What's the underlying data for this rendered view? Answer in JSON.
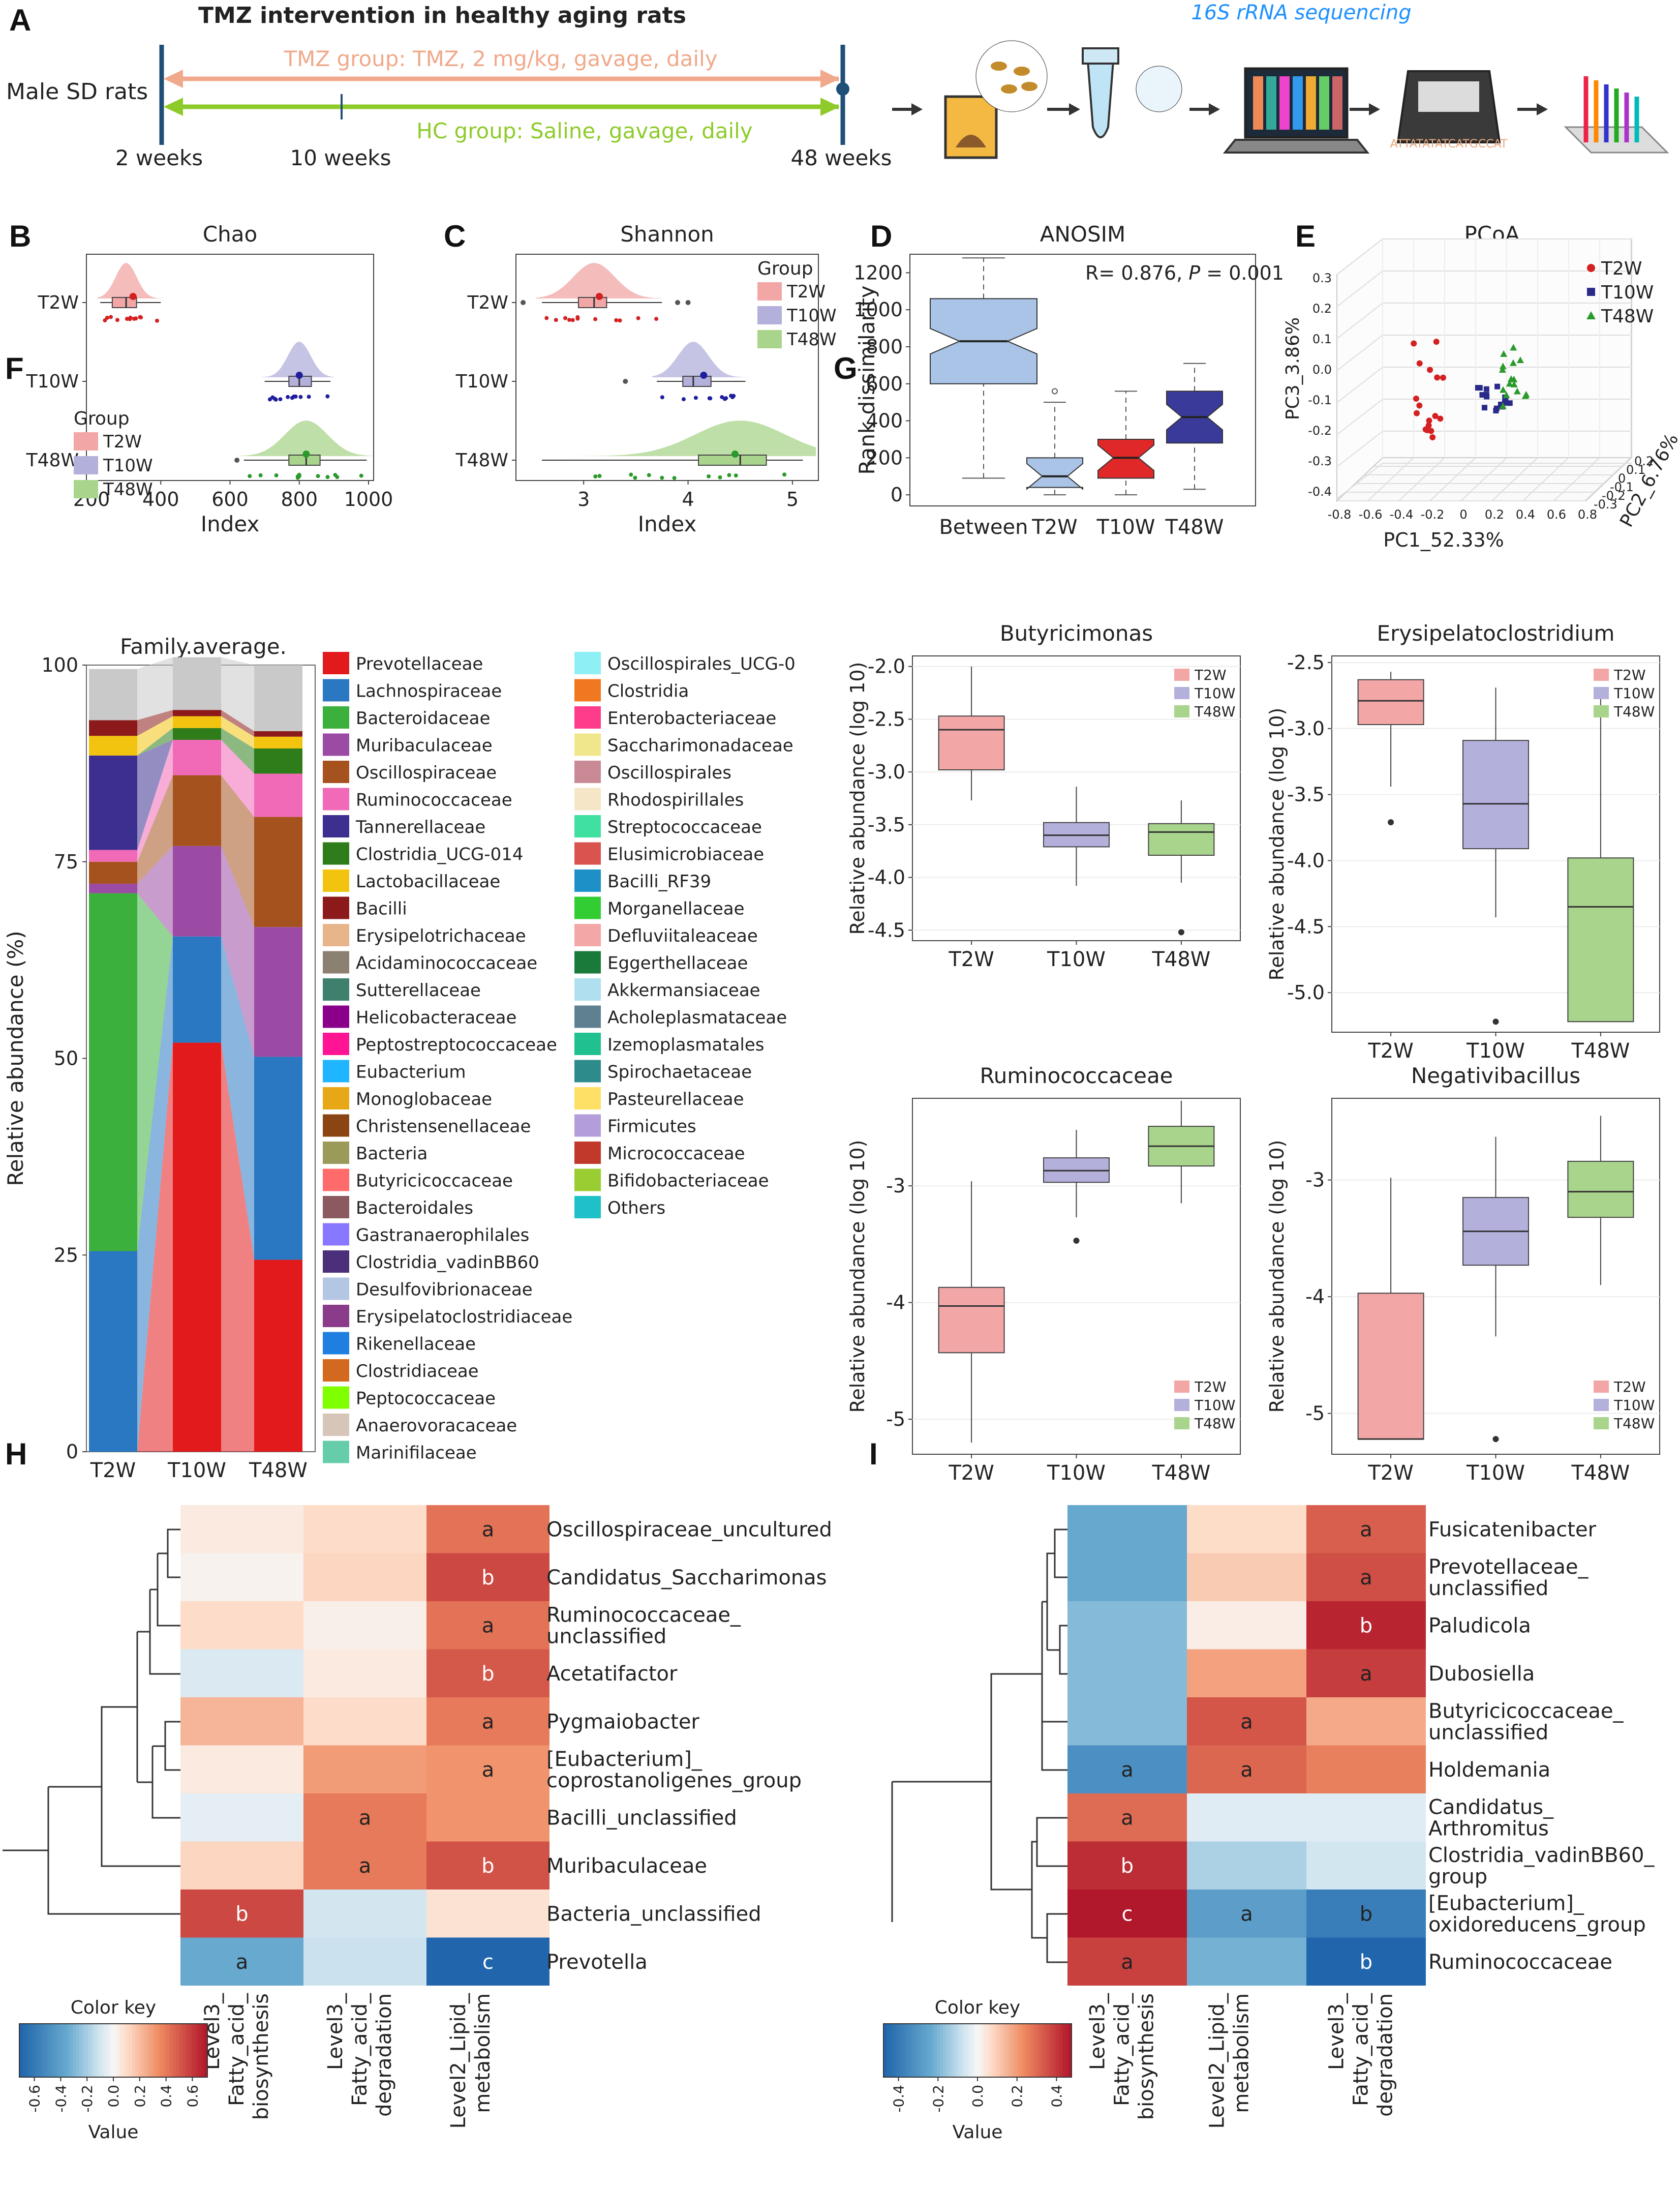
{
  "panel_letters": [
    "A",
    "B",
    "C",
    "D",
    "E",
    "F",
    "G",
    "H",
    "I"
  ],
  "panelA": {
    "title": "TMZ intervention in healthy aging rats",
    "subject": "Male SD rats",
    "tmz_label": "TMZ group: TMZ, 2 mg/kg, gavage, daily",
    "hc_label": "HC group: Saline, gavage, daily",
    "times": [
      "2 weeks",
      "10 weeks",
      "48 weeks"
    ],
    "seq_label": "16S rRNA sequencing",
    "seq_text": "ATTATATATCATGCCAT"
  },
  "colors": {
    "T2W": "#f2a6a6",
    "T10W": "#b3b0dc",
    "T48W": "#a9d48c",
    "T2W_dot": "#d42020",
    "T10W_dot": "#1f1f9e",
    "T48W_dot": "#2a9a2a",
    "pcoa_T2W": "#d42020",
    "pcoa_T10W": "#2a2a8a",
    "pcoa_T48W": "#2a9a2a",
    "tmz": "#f0a98a",
    "hc": "#8ecb2a",
    "timeline": "#1f4e79",
    "seq": "#1e90ff"
  },
  "group_labels": [
    "T2W",
    "T10W",
    "T48W"
  ],
  "legend_title": "Group",
  "chart_data": [
    {
      "panel": "B",
      "type": "raincloud",
      "title": "Chao",
      "xlabel": "Index",
      "xlim": [
        200,
        1000
      ],
      "xticks": [
        200,
        400,
        600,
        800,
        1000
      ],
      "categories": [
        "T2W",
        "T10W",
        "T48W"
      ],
      "box": [
        {
          "q1": 260,
          "median": 300,
          "q3": 330,
          "whislo": 225,
          "whishi": 400,
          "mean": 320,
          "outliers": []
        },
        {
          "q1": 770,
          "median": 800,
          "q3": 835,
          "whislo": 700,
          "whishi": 890,
          "mean": 800,
          "outliers": []
        },
        {
          "q1": 770,
          "median": 820,
          "q3": 860,
          "whislo": 640,
          "whishi": 995,
          "mean": 820,
          "outliers": [
            620
          ]
        }
      ]
    },
    {
      "panel": "C",
      "type": "raincloud",
      "title": "Shannon",
      "xlabel": "Index",
      "xlim": [
        2.4,
        5.2
      ],
      "xticks": [
        3,
        4,
        5
      ],
      "categories": [
        "T2W",
        "T10W",
        "T48W"
      ],
      "box": [
        {
          "q1": 2.95,
          "median": 3.1,
          "q3": 3.22,
          "whislo": 2.6,
          "whishi": 3.75,
          "mean": 3.15,
          "outliers": [
            2.42,
            3.9,
            4.0
          ]
        },
        {
          "q1": 3.95,
          "median": 4.05,
          "q3": 4.22,
          "whislo": 3.7,
          "whishi": 4.55,
          "mean": 4.15,
          "outliers": [
            3.4
          ]
        },
        {
          "q1": 4.1,
          "median": 4.5,
          "q3": 4.75,
          "whislo": 2.6,
          "whishi": 5.1,
          "mean": 4.45,
          "outliers": []
        }
      ]
    },
    {
      "panel": "D",
      "type": "boxplot",
      "title": "ANOSIM",
      "ylabel": "Rank dissimilarity",
      "ylim": [
        -60,
        1300
      ],
      "yticks": [
        0,
        200,
        400,
        600,
        800,
        1000,
        1200
      ],
      "annotation_r": "R= 0.876,",
      "annotation_p": "P",
      "annotation_pval": " = 0.001",
      "categories": [
        "Between",
        "T2W",
        "T10W",
        "T48W"
      ],
      "box_colors": [
        "#a9c4e6",
        "#a9c4e6",
        "#e02828",
        "#3a3a9a"
      ],
      "box": [
        {
          "q1": 600,
          "median": 830,
          "q3": 1060,
          "whislo": 90,
          "whishi": 1280,
          "outliers": []
        },
        {
          "q1": 40,
          "median": 100,
          "q3": 200,
          "whislo": 0,
          "whishi": 500,
          "outliers": [
            560
          ]
        },
        {
          "q1": 90,
          "median": 200,
          "q3": 300,
          "whislo": 0,
          "whishi": 560,
          "outliers": []
        },
        {
          "q1": 280,
          "median": 420,
          "q3": 560,
          "whislo": 30,
          "whishi": 710,
          "outliers": []
        }
      ]
    },
    {
      "panel": "E",
      "type": "scatter3d",
      "title": "PCoA",
      "xlabel": "PC1_52.33%",
      "ylabel": "PC2_6.76%",
      "zlabel": "PC3_3.86%",
      "zticks": [
        "-0.4",
        "-0.3",
        "-0.2",
        "-0.1",
        "0.0",
        "0.1",
        "0.2",
        "0.3"
      ],
      "xticks": [
        "-0.8",
        "-0.6",
        "-0.4",
        "-0.2",
        "0",
        "0.2",
        "0.4",
        "0.6",
        "0.8"
      ],
      "yticks": [
        "-0.3",
        "-0.2",
        "-0.1",
        "0",
        "0.1",
        "0.2"
      ],
      "legend": [
        "T2W",
        "T10W",
        "T48W"
      ]
    },
    {
      "panel": "F",
      "type": "stacked_bar",
      "title": "Family.average.",
      "ylabel": "Relative abundance (%)",
      "ylim": [
        0,
        100
      ],
      "yticks": [
        0,
        25,
        50,
        75,
        100
      ],
      "categories": [
        "T2W",
        "T10W",
        "T48W"
      ],
      "series": [
        {
          "name": "Prevotellaceae",
          "color": "#e31a1c",
          "values": [
            0,
            52,
            24.4
          ]
        },
        {
          "name": "Lachnospiraceae",
          "color": "#2a78c2",
          "values": [
            25.5,
            13.5,
            25.8
          ]
        },
        {
          "name": "Bacteroidaceae",
          "color": "#3cb03c",
          "values": [
            45.5,
            0,
            0
          ]
        },
        {
          "name": "Muribaculaceae",
          "color": "#9b4ba3",
          "values": [
            1.2,
            11.5,
            16.5
          ]
        },
        {
          "name": "Oscillospiraceae",
          "color": "#a6521f",
          "values": [
            2.8,
            9,
            14
          ]
        },
        {
          "name": "Ruminococcaceae",
          "color": "#f06ab8",
          "values": [
            1.5,
            4.5,
            5.5
          ]
        },
        {
          "name": "Tannerellaceae",
          "color": "#3d2f8f",
          "values": [
            12,
            0,
            0
          ]
        },
        {
          "name": "Clostridia_UCG-014",
          "color": "#2e7d1a",
          "values": [
            0,
            1.5,
            3.2
          ]
        },
        {
          "name": "Lactobacillaceae",
          "color": "#f2c40f",
          "values": [
            2.5,
            1.5,
            1.5
          ]
        },
        {
          "name": "Bacilli",
          "color": "#8c1a1a",
          "values": [
            2,
            0.8,
            0.7
          ]
        },
        {
          "name": "Others",
          "color": "#c9c9c9",
          "values": [
            6.5,
            6.7,
            8.4
          ]
        }
      ],
      "legend_col1": [
        "Prevotellaceae",
        "Lachnospiraceae",
        "Bacteroidaceae",
        "Muribaculaceae",
        "Oscillospiraceae",
        "Ruminococcaceae",
        "Tannerellaceae",
        "Clostridia_UCG-014",
        "Lactobacillaceae",
        "Bacilli",
        "Erysipelotrichaceae",
        "Acidaminococcaceae",
        "Sutterellaceae",
        "Helicobacteraceae",
        "Peptostreptococcaceae",
        "Eubacterium",
        "Monoglobaceae",
        "Christensenellaceae",
        "Bacteria",
        "Butyricicoccaceae",
        "Bacteroidales",
        "Gastranaerophilales",
        "Clostridia_vadinBB60",
        "Desulfovibrionaceae",
        "Erysipelatoclostridiaceae",
        "Rikenellaceae",
        "Clostridiaceae",
        "Peptococcaceae",
        "Anaerovoracaceae",
        "Marinifilaceae"
      ],
      "legend_col1_colors": [
        "#e31a1c",
        "#2a78c2",
        "#3cb03c",
        "#9b4ba3",
        "#a6521f",
        "#f06ab8",
        "#3d2f8f",
        "#2e7d1a",
        "#f2c40f",
        "#8c1a1a",
        "#e8b48a",
        "#8c8070",
        "#3f7f6e",
        "#8b008b",
        "#ff1493",
        "#1fb6ff",
        "#e6a817",
        "#8b4513",
        "#9a9a5a",
        "#ff6b6b",
        "#8b5a60",
        "#8878ff",
        "#4b2f7a",
        "#b3c6e3",
        "#8a3c8a",
        "#1e7fe0",
        "#d2691e",
        "#7fff00",
        "#d7c5b9",
        "#66cdaa"
      ],
      "legend_col2": [
        "Oscillospirales_UCG-0",
        "Clostridia",
        "Enterobacteriaceae",
        "Saccharimonadaceae",
        "Oscillospirales",
        "Rhodospirillales",
        "Streptococcaceae",
        "Elusimicrobiaceae",
        "Bacilli_RF39",
        "Morganellaceae",
        "Defluviitaleaceae",
        "Eggerthellaceae",
        "Akkermansiaceae",
        "Acholeplasmataceae",
        "Izemoplasmatales",
        "Spirochaetaceae",
        "Pasteurellaceae",
        "Firmicutes",
        "Micrococcaceae",
        "Bifidobacteriaceae",
        "Others"
      ],
      "legend_col2_colors": [
        "#8ef0f5",
        "#f07820",
        "#ff3c8c",
        "#f0e68c",
        "#c98a96",
        "#f5e6c8",
        "#40e0a0",
        "#d9534f",
        "#1e90c8",
        "#32cd32",
        "#f4a7a7",
        "#1a7a3a",
        "#b0e0f0",
        "#5f8090",
        "#20c090",
        "#2e8b8b",
        "#ffe066",
        "#b39ddb",
        "#c0392b",
        "#9acd32",
        "#20c0c8"
      ]
    },
    {
      "panel": "G1",
      "type": "boxplot",
      "title": "Butyricimonas",
      "ylabel": "Relative abundance (log 10)",
      "ylim": [
        -4.6,
        -1.9
      ],
      "yticks": [
        -4.5,
        -4.0,
        -3.5,
        -3.0,
        -2.5,
        -2.0
      ],
      "ytick_labels": [
        "-4.5",
        "-4.0",
        "-3.5",
        "-3.0",
        "-2.5",
        "-2.0"
      ],
      "categories": [
        "T2W",
        "T10W",
        "T48W"
      ],
      "box": [
        {
          "q1": -2.98,
          "median": -2.6,
          "q3": -2.47,
          "whislo": -3.27,
          "whishi": -2.0,
          "outliers": []
        },
        {
          "q1": -3.71,
          "median": -3.6,
          "q3": -3.48,
          "whislo": -4.08,
          "whishi": -3.14,
          "outliers": []
        },
        {
          "q1": -3.79,
          "median": -3.57,
          "q3": -3.49,
          "whislo": -4.05,
          "whishi": -3.27,
          "outliers": [
            -4.52
          ]
        }
      ]
    },
    {
      "panel": "G2",
      "type": "boxplot",
      "title": "Erysipelatoclostridium",
      "ylabel": "Relative abundance (log 10)",
      "ylim": [
        -5.3,
        -2.45
      ],
      "yticks": [
        -5.0,
        -4.5,
        -4.0,
        -3.5,
        -3.0,
        -2.5
      ],
      "ytick_labels": [
        "-5.0",
        "-4.5",
        "-4.0",
        "-3.5",
        "-3.0",
        "-2.5"
      ],
      "categories": [
        "T2W",
        "T10W",
        "T48W"
      ],
      "box": [
        {
          "q1": -2.97,
          "median": -2.79,
          "q3": -2.63,
          "whislo": -3.44,
          "whishi": -2.57,
          "outliers": [
            -3.71
          ]
        },
        {
          "q1": -3.91,
          "median": -3.57,
          "q3": -3.09,
          "whislo": -4.43,
          "whishi": -2.69,
          "outliers": [
            -5.22
          ]
        },
        {
          "q1": -5.22,
          "median": -4.35,
          "q3": -3.98,
          "whislo": -5.22,
          "whishi": -2.72,
          "outliers": []
        }
      ]
    },
    {
      "panel": "G3",
      "type": "boxplot",
      "title": "Ruminococcaceae",
      "ylabel": "Relative abundance (log 10)",
      "ylim": [
        -5.3,
        -2.25
      ],
      "yticks": [
        -5,
        -4,
        -3
      ],
      "ytick_labels": [
        "-5",
        "-4",
        "-3"
      ],
      "categories": [
        "T2W",
        "T10W",
        "T48W"
      ],
      "box": [
        {
          "q1": -4.43,
          "median": -4.03,
          "q3": -3.87,
          "whislo": -5.2,
          "whishi": -2.96,
          "outliers": []
        },
        {
          "q1": -2.97,
          "median": -2.87,
          "q3": -2.76,
          "whislo": -3.27,
          "whishi": -2.52,
          "outliers": [
            -3.47
          ]
        },
        {
          "q1": -2.83,
          "median": -2.66,
          "q3": -2.49,
          "whislo": -3.15,
          "whishi": -2.27,
          "outliers": []
        }
      ]
    },
    {
      "panel": "G4",
      "type": "boxplot",
      "title": "Negativibacillus",
      "ylabel": "Relative abundance (log 10)",
      "ylim": [
        -5.35,
        -2.3
      ],
      "yticks": [
        -5,
        -4,
        -3
      ],
      "ytick_labels": [
        "-5",
        "-4",
        "-3"
      ],
      "categories": [
        "T2W",
        "T10W",
        "T48W"
      ],
      "box": [
        {
          "q1": -5.22,
          "median": -5.22,
          "q3": -3.97,
          "whislo": -5.22,
          "whishi": -2.98,
          "outliers": []
        },
        {
          "q1": -3.73,
          "median": -3.44,
          "q3": -3.15,
          "whislo": -4.34,
          "whishi": -2.63,
          "outliers": [
            -5.22
          ]
        },
        {
          "q1": -3.32,
          "median": -3.1,
          "q3": -2.84,
          "whislo": -3.9,
          "whishi": -2.45,
          "outliers": []
        }
      ]
    },
    {
      "panel": "H",
      "type": "heatmap",
      "columns": [
        "Level3_Fatty_acid_biosynthesis",
        "Level3_Fatty_acid_degradation",
        "Level2_Lipid_metabolism"
      ],
      "col_label_lines": [
        [
          "Level3_",
          "Fatty_acid_",
          "biosynthesis"
        ],
        [
          "Level3_",
          "Fatty_acid_",
          "degradation"
        ],
        [
          "Level2_Lipid_",
          "metabolism"
        ]
      ],
      "rows": [
        "Oscillospiraceae_uncultured",
        "Candidatus_Saccharimonas",
        "Ruminococcaceae_unclassified",
        "Acetatifactor",
        "Pygmaiobacter",
        "[Eubacterium]_coprostanoligenes_group",
        "Bacilli_unclassified",
        "Muribaculaceae",
        "Bacteria_unclassified",
        "Prevotella"
      ],
      "row_label_lines": [
        [
          "Oscillospiraceae_uncultured"
        ],
        [
          "Candidatus_Saccharimonas"
        ],
        [
          "Ruminococcaceae_",
          "unclassified"
        ],
        [
          "Acetatifactor"
        ],
        [
          "Pygmaiobacter"
        ],
        [
          "[Eubacterium]_",
          "coprostanoligenes_group"
        ],
        [
          "Bacilli_unclassified"
        ],
        [
          "Muribaculaceae"
        ],
        [
          "Bacteria_unclassified"
        ],
        [
          "Prevotella"
        ]
      ],
      "values": [
        [
          0.05,
          0.1,
          0.42
        ],
        [
          0.02,
          0.12,
          0.55
        ],
        [
          0.1,
          0.03,
          0.42
        ],
        [
          -0.08,
          0.05,
          0.5
        ],
        [
          0.22,
          0.1,
          0.4
        ],
        [
          0.05,
          0.3,
          0.32
        ],
        [
          -0.05,
          0.4,
          0.32
        ],
        [
          0.12,
          0.4,
          0.52
        ],
        [
          0.55,
          -0.1,
          0.08
        ],
        [
          -0.35,
          -0.12,
          -0.7
        ]
      ],
      "labels": [
        [
          "",
          "",
          "a"
        ],
        [
          "",
          "",
          "b"
        ],
        [
          "",
          "",
          "a"
        ],
        [
          "",
          "",
          "b"
        ],
        [
          "",
          "",
          "a"
        ],
        [
          "",
          "",
          "a"
        ],
        [
          "",
          "a",
          ""
        ],
        [
          "",
          "a",
          "b"
        ],
        [
          "b",
          "",
          ""
        ],
        [
          "a",
          "",
          "c"
        ]
      ],
      "color_key_title": "Color key",
      "color_key_xlabel": "Value",
      "color_key_range": [
        -0.7,
        0.7
      ],
      "color_key_ticks": [
        "-0.6",
        "-0.4",
        "-0.2",
        "0.0",
        "0.2",
        "0.4",
        "0.6"
      ]
    },
    {
      "panel": "I",
      "type": "heatmap",
      "columns": [
        "Level3_Fatty_acid_biosynthesis",
        "Level2_Lipid_metabolism",
        "Level3_Fatty_acid_degradation"
      ],
      "col_label_lines": [
        [
          "Level3_",
          "Fatty_acid_",
          "biosynthesis"
        ],
        [
          "Level2_Lipid_",
          "metabolism"
        ],
        [
          "Level3_",
          "Fatty_acid_",
          "degradation"
        ]
      ],
      "rows": [
        "Fusicatenibacter",
        "Prevotellaceae_unclassified",
        "Paludicola",
        "Dubosiella",
        "Butyricicoccaceae_unclassified",
        "Holdemania",
        "Candidatus_Arthromitus",
        "Clostridia_vadinBB60_group",
        "[Eubacterium]_oxidoreducens_group",
        "Ruminococcaceae"
      ],
      "row_label_lines": [
        [
          "Fusicatenibacter"
        ],
        [
          "Prevotellaceae_",
          "unclassified"
        ],
        [
          "Paludicola"
        ],
        [
          "Dubosiella"
        ],
        [
          "Butyricicoccaceae_",
          "unclassified"
        ],
        [
          "Holdemania"
        ],
        [
          "Candidatus_",
          "Arthromitus"
        ],
        [
          "Clostridia_vadinBB60_",
          "group"
        ],
        [
          "[Eubacterium]_",
          "oxidoreducens_group"
        ],
        [
          "Ruminococcaceae"
        ]
      ],
      "values": [
        [
          -0.28,
          0.08,
          0.38
        ],
        [
          -0.28,
          0.12,
          0.42
        ],
        [
          -0.22,
          0.03,
          0.52
        ],
        [
          -0.22,
          0.22,
          0.46
        ],
        [
          -0.22,
          0.4,
          0.2
        ],
        [
          -0.38,
          0.36,
          0.3
        ],
        [
          0.35,
          -0.05,
          -0.05
        ],
        [
          0.5,
          -0.15,
          -0.08
        ],
        [
          0.55,
          -0.32,
          -0.45
        ],
        [
          0.45,
          -0.25,
          -0.55
        ]
      ],
      "labels": [
        [
          "",
          "",
          "a"
        ],
        [
          "",
          "",
          "a"
        ],
        [
          "",
          "",
          "b"
        ],
        [
          "",
          "",
          "a"
        ],
        [
          "",
          "a",
          ""
        ],
        [
          "a",
          "a",
          ""
        ],
        [
          "a",
          "",
          ""
        ],
        [
          "b",
          "",
          ""
        ],
        [
          "c",
          "a",
          "b"
        ],
        [
          "a",
          "",
          "b"
        ]
      ],
      "color_key_title": "Color key",
      "color_key_xlabel": "Value",
      "color_key_range": [
        -0.55,
        0.55
      ],
      "color_key_ticks": [
        "-0.4",
        "-0.2",
        "0.0",
        "0.2",
        "0.4"
      ]
    }
  ]
}
